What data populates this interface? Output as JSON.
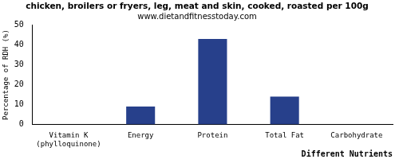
{
  "chart_data": {
    "type": "bar",
    "title": "chicken, broilers or fryers, leg, meat and skin, cooked, roasted per 100g",
    "subtitle": "www.dietandfitnesstoday.com",
    "x_label": "Different Nutrients",
    "y_label": "Percentage of RDH (%)",
    "categories": [
      "Vitamin K (phylloquinone)",
      "Energy",
      "Protein",
      "Total Fat",
      "Carbohydrate"
    ],
    "values": [
      0,
      9,
      43,
      14,
      0
    ],
    "color": "#27408b",
    "ylim": [
      0,
      50
    ],
    "yticks": [
      0,
      10,
      20,
      30,
      40,
      50
    ],
    "grid": false
  }
}
